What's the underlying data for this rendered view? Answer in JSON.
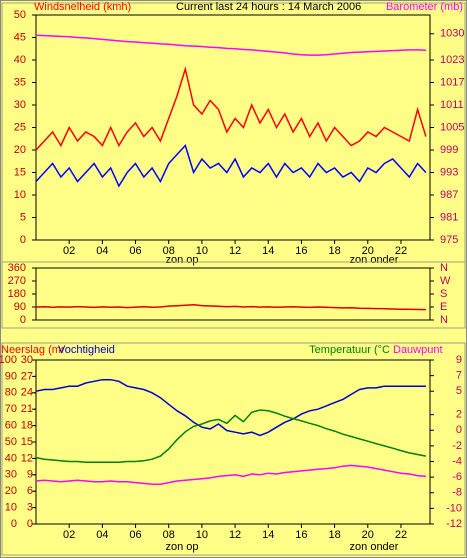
{
  "chart_data": [
    {
      "type": "line",
      "title": "Current last 24 hours : 14 March 2006",
      "y_label": "Windsnelheid (kmh)",
      "y2_label": "Barometer (mb)",
      "x": [
        0,
        0.5,
        1,
        1.5,
        2,
        2.5,
        3,
        3.5,
        4,
        4.5,
        5,
        5.5,
        6,
        6.5,
        7,
        7.5,
        8,
        8.5,
        9,
        9.5,
        10,
        10.5,
        11,
        11.5,
        12,
        12.5,
        13,
        13.5,
        14,
        14.5,
        15,
        15.5,
        16,
        16.5,
        17,
        17.5,
        18,
        18.5,
        19,
        19.5,
        20,
        20.5,
        21,
        21.5,
        22,
        22.5,
        23,
        23.5
      ],
      "xlim": [
        0,
        23.75
      ],
      "xticks": [
        {
          "value": 2,
          "label": "02"
        },
        {
          "value": 4,
          "label": "04"
        },
        {
          "value": 6,
          "label": "06"
        },
        {
          "value": 8,
          "label": "08"
        },
        {
          "value": 10,
          "label": "10"
        },
        {
          "value": 12,
          "label": "12"
        },
        {
          "value": 14,
          "label": "14"
        },
        {
          "value": 16,
          "label": "16"
        },
        {
          "value": 18,
          "label": "18"
        },
        {
          "value": 20,
          "label": "20"
        },
        {
          "value": 22,
          "label": "22"
        }
      ],
      "ylim": [
        0,
        50
      ],
      "yticks": [
        0,
        5,
        10,
        15,
        20,
        25,
        30,
        35,
        40,
        45,
        50
      ],
      "y2lim": [
        975,
        1035
      ],
      "y2ticks": [
        975,
        981,
        987,
        993,
        999,
        1005,
        1011,
        1017,
        1023,
        1030
      ],
      "annotations": [
        "zon op",
        "zon onder"
      ],
      "series": [
        {
          "color": "#0000ff",
          "values": [
            13,
            15,
            17,
            14,
            16,
            13,
            15,
            17,
            14,
            16,
            12,
            15,
            17,
            14,
            16,
            13,
            17,
            19,
            21,
            15,
            18,
            16,
            17,
            15,
            18,
            14,
            16,
            15,
            17,
            14,
            17,
            15,
            16,
            14,
            17,
            15,
            16,
            14,
            15,
            13,
            16,
            15,
            17,
            18,
            16,
            14,
            17,
            15
          ]
        },
        {
          "color": "#ff0000",
          "values": [
            20,
            22,
            24,
            21,
            25,
            22,
            24,
            23,
            21,
            25,
            21,
            24,
            26,
            23,
            25,
            22,
            27,
            32,
            38,
            30,
            28,
            31,
            29,
            24,
            27,
            25,
            30,
            26,
            29,
            25,
            28,
            24,
            27,
            23,
            26,
            22,
            25,
            23,
            21,
            22,
            24,
            23,
            25,
            24,
            23,
            22,
            29,
            23
          ]
        },
        {
          "name": "Barometer (mb)",
          "color": "#ff00ff",
          "axis": "y2",
          "values": [
            1029.6,
            1029.5,
            1029.4,
            1029.3,
            1029.2,
            1029,
            1028.9,
            1028.7,
            1028.5,
            1028.3,
            1028.1,
            1027.9,
            1027.8,
            1027.6,
            1027.5,
            1027.3,
            1027.2,
            1027,
            1026.8,
            1026.7,
            1026.6,
            1026.4,
            1026.3,
            1026.1,
            1026,
            1025.8,
            1025.7,
            1025.5,
            1025.3,
            1025.1,
            1024.9,
            1024.6,
            1024.4,
            1024.3,
            1024.3,
            1024.4,
            1024.6,
            1024.8,
            1025,
            1025.1,
            1025.2,
            1025.3,
            1025.4,
            1025.5,
            1025.6,
            1025.7,
            1025.7,
            1025.6
          ]
        }
      ]
    },
    {
      "type": "line",
      "x": [
        0,
        0.5,
        1,
        1.5,
        2,
        2.5,
        3,
        3.5,
        4,
        4.5,
        5,
        5.5,
        6,
        6.5,
        7,
        7.5,
        8,
        8.5,
        9,
        9.5,
        10,
        10.5,
        11,
        11.5,
        12,
        12.5,
        13,
        13.5,
        14,
        14.5,
        15,
        15.5,
        16,
        16.5,
        17,
        17.5,
        18,
        18.5,
        19,
        19.5,
        20,
        20.5,
        21,
        21.5,
        22,
        22.5,
        23,
        23.5
      ],
      "xlim": [
        0,
        23.75
      ],
      "ylim": [
        0,
        360
      ],
      "yticks": [
        0,
        90,
        180,
        270,
        360
      ],
      "y2lim": [
        0,
        360
      ],
      "y2ticks": [
        {
          "value": 0,
          "label": "N"
        },
        {
          "value": 90,
          "label": "E"
        },
        {
          "value": 180,
          "label": "S"
        },
        {
          "value": 270,
          "label": "W"
        },
        {
          "value": 360,
          "label": "N"
        }
      ],
      "series": [
        {
          "color": "#dd0000",
          "values": [
            90,
            92,
            88,
            91,
            89,
            93,
            90,
            87,
            91,
            88,
            90,
            86,
            89,
            92,
            88,
            90,
            96,
            99,
            102,
            105,
            100,
            97,
            95,
            92,
            94,
            90,
            93,
            89,
            91,
            88,
            90,
            92,
            89,
            87,
            90,
            88,
            86,
            84,
            85,
            82,
            80,
            79,
            78,
            76,
            75,
            74,
            73,
            72
          ]
        }
      ]
    },
    {
      "type": "line",
      "rain_label": "Neerslag (mr",
      "x": [
        0,
        0.5,
        1,
        1.5,
        2,
        2.5,
        3,
        3.5,
        4,
        4.5,
        5,
        5.5,
        6,
        6.5,
        7,
        7.5,
        8,
        8.5,
        9,
        9.5,
        10,
        10.5,
        11,
        11.5,
        12,
        12.5,
        13,
        13.5,
        14,
        14.5,
        15,
        15.5,
        16,
        16.5,
        17,
        17.5,
        18,
        18.5,
        19,
        19.5,
        20,
        20.5,
        21,
        21.5,
        22,
        22.5,
        23,
        23.5
      ],
      "xlim": [
        0,
        23.75
      ],
      "xticks": [
        {
          "value": 2,
          "label": "02"
        },
        {
          "value": 4,
          "label": "04"
        },
        {
          "value": 6,
          "label": "06"
        },
        {
          "value": 8,
          "label": "08"
        },
        {
          "value": 10,
          "label": "10"
        },
        {
          "value": 12,
          "label": "12"
        },
        {
          "value": 14,
          "label": "14"
        },
        {
          "value": 16,
          "label": "16"
        },
        {
          "value": 18,
          "label": "18"
        },
        {
          "value": 20,
          "label": "20"
        },
        {
          "value": 22,
          "label": "22"
        }
      ],
      "ylim": [
        0,
        100
      ],
      "yticks": [
        0,
        10,
        20,
        30,
        40,
        50,
        60,
        70,
        80,
        90,
        100
      ],
      "rain_ylim": [
        0,
        30
      ],
      "rain_yticks": [
        0,
        3,
        6,
        9,
        12,
        15,
        18,
        21,
        24,
        27,
        30
      ],
      "y2lim": [
        -12,
        9
      ],
      "y2ticks": [
        -12,
        -10,
        -8,
        -6,
        -4,
        -2,
        0,
        2,
        5,
        7,
        9
      ],
      "annotations": [
        "zon op",
        "zon onder"
      ],
      "series": [
        {
          "name": "Vochtigheid",
          "color": "#0000cc",
          "values": [
            81,
            82,
            82,
            83,
            84,
            84,
            86,
            87,
            88,
            88,
            87,
            84,
            83,
            82,
            80,
            77,
            73,
            69,
            66,
            62,
            59,
            58,
            61,
            57,
            56,
            55,
            56,
            54,
            56,
            59,
            62,
            64,
            67,
            69,
            70,
            72,
            74,
            76,
            79,
            82,
            83,
            83,
            84,
            84,
            84,
            84,
            84,
            84
          ]
        },
        {
          "name": "Temperatuur (°C",
          "color": "#008000",
          "axis": "y2",
          "values": [
            -3.5,
            -3.7,
            -3.8,
            -3.9,
            -4,
            -4,
            -4.1,
            -4.1,
            -4.1,
            -4.1,
            -4.1,
            -4,
            -4,
            -3.9,
            -3.7,
            -3.3,
            -2.4,
            -1.2,
            -0.2,
            0.5,
            0.8,
            1.2,
            1.4,
            0.9,
            1.9,
            1.1,
            2.3,
            2.6,
            2.5,
            2.2,
            1.8,
            1.5,
            1.2,
            0.9,
            0.6,
            0.2,
            -0.1,
            -0.5,
            -0.8,
            -1.1,
            -1.4,
            -1.7,
            -2,
            -2.3,
            -2.6,
            -2.9,
            -3.1,
            -3.3
          ]
        },
        {
          "name": "Dauwpunt",
          "color": "#ff00ff",
          "axis": "y2",
          "values": [
            -6.5,
            -6.4,
            -6.5,
            -6.6,
            -6.5,
            -6.4,
            -6.5,
            -6.6,
            -6.6,
            -6.5,
            -6.6,
            -6.6,
            -6.7,
            -6.8,
            -6.9,
            -6.9,
            -6.7,
            -6.5,
            -6.4,
            -6.3,
            -6.2,
            -6.1,
            -5.9,
            -5.8,
            -5.7,
            -5.9,
            -5.6,
            -5.7,
            -5.5,
            -5.6,
            -5.4,
            -5.3,
            -5.2,
            -5.1,
            -5.0,
            -4.9,
            -4.8,
            -4.6,
            -4.5,
            -4.6,
            -4.7,
            -4.9,
            -5.1,
            -5.3,
            -5.5,
            -5.6,
            -5.8,
            -5.9
          ]
        }
      ]
    }
  ]
}
